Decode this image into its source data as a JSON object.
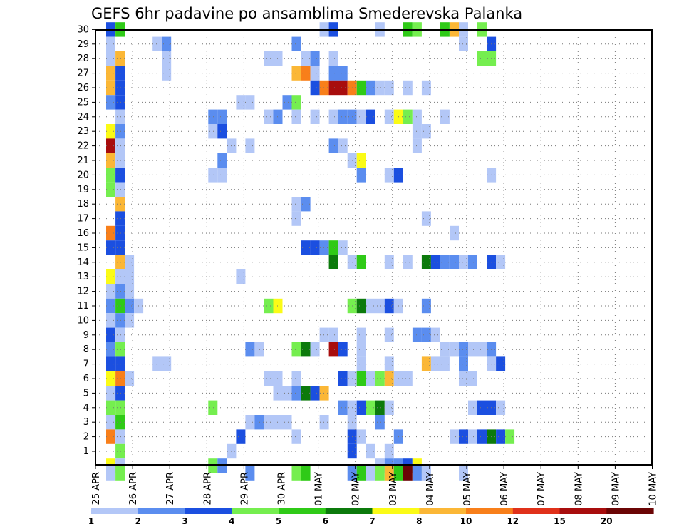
{
  "chart_data": {
    "type": "heatmap",
    "title": "GEFS 6hr padavine po ansamblima Smederevska Palanka",
    "xlabel": "",
    "ylabel": "",
    "y_range": [
      0,
      30
    ],
    "y_ticks": [
      1,
      2,
      3,
      4,
      5,
      6,
      7,
      8,
      9,
      10,
      11,
      12,
      13,
      14,
      15,
      16,
      17,
      18,
      19,
      20,
      21,
      22,
      23,
      24,
      25,
      26,
      27,
      28,
      29,
      30
    ],
    "x_ticks": [
      "25 APR",
      "26 APR",
      "27 APR",
      "28 APR",
      "29 APR",
      "30 APR",
      "01 MAY",
      "02 MAY",
      "03 MAY",
      "04 MAY",
      "05 MAY",
      "06 MAY",
      "07 MAY",
      "08 MAY",
      "09 MAY",
      "10 MAY"
    ],
    "time_steps_per_day": 4,
    "grid": true,
    "colorbar": {
      "position": "bottom",
      "labels": [
        "1",
        "2",
        "3",
        "4",
        "5",
        "6",
        "7",
        "8",
        "10",
        "12",
        "15",
        "20"
      ],
      "colors": [
        "#b3c7f7",
        "#5b8def",
        "#1b4fe0",
        "#75ee4f",
        "#2fca17",
        "#0c7a0c",
        "#fbfb16",
        "#fbb736",
        "#f87f1a",
        "#e0311a",
        "#a80d0d",
        "#6b0505"
      ]
    },
    "cells": [
      [
        0.5,
        30,
        "#1b4fe0"
      ],
      [
        1,
        30,
        "#2fca17"
      ],
      [
        12,
        30,
        "#b3c7f7"
      ],
      [
        12.5,
        30,
        "#1b4fe0"
      ],
      [
        15,
        30,
        "#b3c7f7"
      ],
      [
        16.5,
        30,
        "#2fca17"
      ],
      [
        17,
        30,
        "#75ee4f"
      ],
      [
        18.5,
        30,
        "#2fca17"
      ],
      [
        19,
        30,
        "#fbb736"
      ],
      [
        19.5,
        30,
        "#b3c7f7"
      ],
      [
        20.5,
        30,
        "#75ee4f"
      ],
      [
        0.5,
        29,
        "#b3c7f7"
      ],
      [
        3,
        29,
        "#b3c7f7"
      ],
      [
        3.5,
        29,
        "#5b8def"
      ],
      [
        10.5,
        29,
        "#5b8def"
      ],
      [
        19.5,
        29,
        "#b3c7f7"
      ],
      [
        21,
        29,
        "#1b4fe0"
      ],
      [
        0.5,
        28,
        "#b3c7f7"
      ],
      [
        1,
        28,
        "#fbb736"
      ],
      [
        3.5,
        28,
        "#b3c7f7"
      ],
      [
        9,
        28,
        "#b3c7f7"
      ],
      [
        9.5,
        28,
        "#b3c7f7"
      ],
      [
        11,
        28,
        "#b3c7f7"
      ],
      [
        11.5,
        28,
        "#5b8def"
      ],
      [
        12.5,
        28,
        "#b3c7f7"
      ],
      [
        20.5,
        28,
        "#75ee4f"
      ],
      [
        21,
        28,
        "#75ee4f"
      ],
      [
        0.5,
        27,
        "#fbb736"
      ],
      [
        1,
        27,
        "#1b4fe0"
      ],
      [
        3.5,
        27,
        "#b3c7f7"
      ],
      [
        10.5,
        27,
        "#fbb736"
      ],
      [
        11,
        27,
        "#f87f1a"
      ],
      [
        11.5,
        27,
        "#b3c7f7"
      ],
      [
        12.5,
        27,
        "#5b8def"
      ],
      [
        13,
        27,
        "#5b8def"
      ],
      [
        0.5,
        26,
        "#fbb736"
      ],
      [
        1,
        26,
        "#1b4fe0"
      ],
      [
        11.5,
        26,
        "#1b4fe0"
      ],
      [
        12,
        26,
        "#f87f1a"
      ],
      [
        12.5,
        26,
        "#a80d0d"
      ],
      [
        13,
        26,
        "#a80d0d"
      ],
      [
        13.5,
        26,
        "#f87f1a"
      ],
      [
        14,
        26,
        "#2fca17"
      ],
      [
        14.5,
        26,
        "#5b8def"
      ],
      [
        15,
        26,
        "#b3c7f7"
      ],
      [
        15.5,
        26,
        "#b3c7f7"
      ],
      [
        16.5,
        26,
        "#b3c7f7"
      ],
      [
        17.5,
        26,
        "#b3c7f7"
      ],
      [
        0.5,
        25,
        "#5b8def"
      ],
      [
        1,
        25,
        "#1b4fe0"
      ],
      [
        7.5,
        25,
        "#b3c7f7"
      ],
      [
        8,
        25,
        "#b3c7f7"
      ],
      [
        10,
        25,
        "#5b8def"
      ],
      [
        10.5,
        25,
        "#75ee4f"
      ],
      [
        1,
        24,
        "#b3c7f7"
      ],
      [
        6,
        24,
        "#5b8def"
      ],
      [
        6.5,
        24,
        "#5b8def"
      ],
      [
        9,
        24,
        "#b3c7f7"
      ],
      [
        9.5,
        24,
        "#5b8def"
      ],
      [
        10.5,
        24,
        "#b3c7f7"
      ],
      [
        11.5,
        24,
        "#b3c7f7"
      ],
      [
        12.5,
        24,
        "#b3c7f7"
      ],
      [
        13,
        24,
        "#5b8def"
      ],
      [
        13.5,
        24,
        "#5b8def"
      ],
      [
        14,
        24,
        "#b3c7f7"
      ],
      [
        14.5,
        24,
        "#1b4fe0"
      ],
      [
        15.5,
        24,
        "#b3c7f7"
      ],
      [
        16,
        24,
        "#fbfb16"
      ],
      [
        16.5,
        24,
        "#75ee4f"
      ],
      [
        17,
        24,
        "#b3c7f7"
      ],
      [
        18.5,
        24,
        "#b3c7f7"
      ],
      [
        0.5,
        23,
        "#fbfb16"
      ],
      [
        1,
        23,
        "#5b8def"
      ],
      [
        6,
        23,
        "#b3c7f7"
      ],
      [
        6.5,
        23,
        "#1b4fe0"
      ],
      [
        17,
        23,
        "#b3c7f7"
      ],
      [
        17.5,
        23,
        "#b3c7f7"
      ],
      [
        0.5,
        22,
        "#a80d0d"
      ],
      [
        1,
        22,
        "#b3c7f7"
      ],
      [
        7,
        22,
        "#b3c7f7"
      ],
      [
        8,
        22,
        "#b3c7f7"
      ],
      [
        12.5,
        22,
        "#5b8def"
      ],
      [
        13,
        22,
        "#b3c7f7"
      ],
      [
        17,
        22,
        "#b3c7f7"
      ],
      [
        0.5,
        21,
        "#fbb736"
      ],
      [
        1,
        21,
        "#b3c7f7"
      ],
      [
        6.5,
        21,
        "#5b8def"
      ],
      [
        13.5,
        21,
        "#b3c7f7"
      ],
      [
        14,
        21,
        "#fbfb16"
      ],
      [
        0.5,
        20,
        "#75ee4f"
      ],
      [
        1,
        20,
        "#1b4fe0"
      ],
      [
        6,
        20,
        "#b3c7f7"
      ],
      [
        6.5,
        20,
        "#b3c7f7"
      ],
      [
        14,
        20,
        "#5b8def"
      ],
      [
        15.5,
        20,
        "#b3c7f7"
      ],
      [
        16,
        20,
        "#1b4fe0"
      ],
      [
        21,
        20,
        "#b3c7f7"
      ],
      [
        0.5,
        19,
        "#75ee4f"
      ],
      [
        1,
        19,
        "#b3c7f7"
      ],
      [
        1,
        18,
        "#fbb736"
      ],
      [
        10.5,
        18,
        "#b3c7f7"
      ],
      [
        11,
        18,
        "#5b8def"
      ],
      [
        1,
        17,
        "#1b4fe0"
      ],
      [
        10.5,
        17,
        "#b3c7f7"
      ],
      [
        17.5,
        17,
        "#b3c7f7"
      ],
      [
        0.5,
        16,
        "#f87f1a"
      ],
      [
        1,
        16,
        "#1b4fe0"
      ],
      [
        19,
        16,
        "#b3c7f7"
      ],
      [
        0.5,
        15,
        "#1b4fe0"
      ],
      [
        1,
        15,
        "#1b4fe0"
      ],
      [
        11,
        15,
        "#1b4fe0"
      ],
      [
        11.5,
        15,
        "#1b4fe0"
      ],
      [
        12,
        15,
        "#5b8def"
      ],
      [
        12.5,
        15,
        "#2fca17"
      ],
      [
        13,
        15,
        "#b3c7f7"
      ],
      [
        1,
        14,
        "#fbb736"
      ],
      [
        1.5,
        14,
        "#b3c7f7"
      ],
      [
        12.5,
        14,
        "#0c7a0c"
      ],
      [
        13.5,
        14,
        "#b3c7f7"
      ],
      [
        14,
        14,
        "#2fca17"
      ],
      [
        15.5,
        14,
        "#b3c7f7"
      ],
      [
        16.5,
        14,
        "#b3c7f7"
      ],
      [
        17.5,
        14,
        "#0c7a0c"
      ],
      [
        18,
        14,
        "#1b4fe0"
      ],
      [
        18.5,
        14,
        "#5b8def"
      ],
      [
        19,
        14,
        "#5b8def"
      ],
      [
        19.5,
        14,
        "#b3c7f7"
      ],
      [
        20,
        14,
        "#5b8def"
      ],
      [
        21,
        14,
        "#1b4fe0"
      ],
      [
        21.5,
        14,
        "#b3c7f7"
      ],
      [
        0.5,
        13,
        "#fbfb16"
      ],
      [
        1,
        13,
        "#b3c7f7"
      ],
      [
        1.5,
        13,
        "#b3c7f7"
      ],
      [
        7.5,
        13,
        "#b3c7f7"
      ],
      [
        0.5,
        12,
        "#b3c7f7"
      ],
      [
        1,
        12,
        "#5b8def"
      ],
      [
        1.5,
        12,
        "#b3c7f7"
      ],
      [
        0.5,
        11,
        "#5b8def"
      ],
      [
        1,
        11,
        "#2fca17"
      ],
      [
        1.5,
        11,
        "#5b8def"
      ],
      [
        2,
        11,
        "#b3c7f7"
      ],
      [
        9,
        11,
        "#75ee4f"
      ],
      [
        9.5,
        11,
        "#fbfb16"
      ],
      [
        13.5,
        11,
        "#75ee4f"
      ],
      [
        14,
        11,
        "#0c7a0c"
      ],
      [
        14.5,
        11,
        "#b3c7f7"
      ],
      [
        15,
        11,
        "#b3c7f7"
      ],
      [
        15.5,
        11,
        "#1b4fe0"
      ],
      [
        16,
        11,
        "#b3c7f7"
      ],
      [
        17.5,
        11,
        "#5b8def"
      ],
      [
        0.5,
        10,
        "#b3c7f7"
      ],
      [
        1,
        10,
        "#5b8def"
      ],
      [
        1.5,
        10,
        "#b3c7f7"
      ],
      [
        0.5,
        9,
        "#1b4fe0"
      ],
      [
        1,
        9,
        "#b3c7f7"
      ],
      [
        12,
        9,
        "#b3c7f7"
      ],
      [
        12.5,
        9,
        "#b3c7f7"
      ],
      [
        14,
        9,
        "#b3c7f7"
      ],
      [
        15.5,
        9,
        "#b3c7f7"
      ],
      [
        17,
        9,
        "#5b8def"
      ],
      [
        17.5,
        9,
        "#5b8def"
      ],
      [
        18,
        9,
        "#b3c7f7"
      ],
      [
        0.5,
        8,
        "#5b8def"
      ],
      [
        1,
        8,
        "#75ee4f"
      ],
      [
        8,
        8,
        "#5b8def"
      ],
      [
        8.5,
        8,
        "#b3c7f7"
      ],
      [
        10.5,
        8,
        "#75ee4f"
      ],
      [
        11,
        8,
        "#0c7a0c"
      ],
      [
        11.5,
        8,
        "#b3c7f7"
      ],
      [
        12.5,
        8,
        "#a80d0d"
      ],
      [
        13,
        8,
        "#1b4fe0"
      ],
      [
        14,
        8,
        "#b3c7f7"
      ],
      [
        18.5,
        8,
        "#b3c7f7"
      ],
      [
        19,
        8,
        "#b3c7f7"
      ],
      [
        19.5,
        8,
        "#5b8def"
      ],
      [
        20,
        8,
        "#b3c7f7"
      ],
      [
        20.5,
        8,
        "#b3c7f7"
      ],
      [
        21,
        8,
        "#5b8def"
      ],
      [
        0.5,
        7,
        "#1b4fe0"
      ],
      [
        1,
        7,
        "#1b4fe0"
      ],
      [
        3,
        7,
        "#b3c7f7"
      ],
      [
        3.5,
        7,
        "#b3c7f7"
      ],
      [
        14,
        7,
        "#b3c7f7"
      ],
      [
        15.5,
        7,
        "#b3c7f7"
      ],
      [
        17.5,
        7,
        "#fbb736"
      ],
      [
        18,
        7,
        "#b3c7f7"
      ],
      [
        18.5,
        7,
        "#b3c7f7"
      ],
      [
        19.5,
        7,
        "#5b8def"
      ],
      [
        21,
        7,
        "#b3c7f7"
      ],
      [
        21.5,
        7,
        "#1b4fe0"
      ],
      [
        0.5,
        6,
        "#fbfb16"
      ],
      [
        1,
        6,
        "#f87f1a"
      ],
      [
        1.5,
        6,
        "#b3c7f7"
      ],
      [
        9,
        6,
        "#b3c7f7"
      ],
      [
        9.5,
        6,
        "#b3c7f7"
      ],
      [
        10.5,
        6,
        "#b3c7f7"
      ],
      [
        13,
        6,
        "#1b4fe0"
      ],
      [
        13.5,
        6,
        "#b3c7f7"
      ],
      [
        14,
        6,
        "#2fca17"
      ],
      [
        14.5,
        6,
        "#b3c7f7"
      ],
      [
        15,
        6,
        "#75ee4f"
      ],
      [
        15.5,
        6,
        "#fbb736"
      ],
      [
        16,
        6,
        "#b3c7f7"
      ],
      [
        16.5,
        6,
        "#b3c7f7"
      ],
      [
        19.5,
        6,
        "#b3c7f7"
      ],
      [
        20,
        6,
        "#b3c7f7"
      ],
      [
        0.5,
        5,
        "#b3c7f7"
      ],
      [
        1,
        5,
        "#1b4fe0"
      ],
      [
        9.5,
        5,
        "#b3c7f7"
      ],
      [
        10,
        5,
        "#b3c7f7"
      ],
      [
        10.5,
        5,
        "#5b8def"
      ],
      [
        11,
        5,
        "#0c7a0c"
      ],
      [
        11.5,
        5,
        "#1b4fe0"
      ],
      [
        12,
        5,
        "#fbb736"
      ],
      [
        0.5,
        4,
        "#75ee4f"
      ],
      [
        1,
        4,
        "#75ee4f"
      ],
      [
        6,
        4,
        "#75ee4f"
      ],
      [
        13,
        4,
        "#5b8def"
      ],
      [
        13.5,
        4,
        "#b3c7f7"
      ],
      [
        14,
        4,
        "#1b4fe0"
      ],
      [
        14.5,
        4,
        "#75ee4f"
      ],
      [
        15,
        4,
        "#0c7a0c"
      ],
      [
        15.5,
        4,
        "#b3c7f7"
      ],
      [
        20,
        4,
        "#b3c7f7"
      ],
      [
        20.5,
        4,
        "#1b4fe0"
      ],
      [
        21,
        4,
        "#1b4fe0"
      ],
      [
        21.5,
        4,
        "#b3c7f7"
      ],
      [
        0.5,
        3,
        "#b3c7f7"
      ],
      [
        1,
        3,
        "#2fca17"
      ],
      [
        8,
        3,
        "#b3c7f7"
      ],
      [
        8.5,
        3,
        "#5b8def"
      ],
      [
        9,
        3,
        "#b3c7f7"
      ],
      [
        9.5,
        3,
        "#b3c7f7"
      ],
      [
        10,
        3,
        "#b3c7f7"
      ],
      [
        12,
        3,
        "#b3c7f7"
      ],
      [
        13.5,
        3,
        "#b3c7f7"
      ],
      [
        15,
        3,
        "#5b8def"
      ],
      [
        0.5,
        2,
        "#f87f1a"
      ],
      [
        1,
        2,
        "#b3c7f7"
      ],
      [
        7.5,
        2,
        "#1b4fe0"
      ],
      [
        10.5,
        2,
        "#b3c7f7"
      ],
      [
        13.5,
        2,
        "#1b4fe0"
      ],
      [
        14,
        2,
        "#b3c7f7"
      ],
      [
        16,
        2,
        "#5b8def"
      ],
      [
        19,
        2,
        "#b3c7f7"
      ],
      [
        19.5,
        2,
        "#1b4fe0"
      ],
      [
        20,
        2,
        "#b3c7f7"
      ],
      [
        20.5,
        2,
        "#1b4fe0"
      ],
      [
        21,
        2,
        "#0c7a0c"
      ],
      [
        21.5,
        2,
        "#1b4fe0"
      ],
      [
        22,
        2,
        "#75ee4f"
      ],
      [
        1,
        1,
        "#75ee4f"
      ],
      [
        7,
        1,
        "#b3c7f7"
      ],
      [
        13.5,
        1,
        "#1b4fe0"
      ],
      [
        14.5,
        1,
        "#b3c7f7"
      ],
      [
        15.5,
        1,
        "#b3c7f7"
      ],
      [
        0.5,
        0,
        "#fbfb16"
      ],
      [
        1,
        0,
        "#b3c7f7"
      ],
      [
        6,
        0,
        "#75ee4f"
      ],
      [
        6.5,
        0,
        "#5b8def"
      ],
      [
        15,
        0,
        "#b3c7f7"
      ],
      [
        15.5,
        0,
        "#5b8def"
      ],
      [
        16,
        0,
        "#5b8def"
      ],
      [
        16.5,
        0,
        "#1b4fe0"
      ],
      [
        17,
        0,
        "#fbfb16"
      ],
      [
        0.5,
        -0.5,
        "#b3c7f7"
      ],
      [
        1,
        -0.5,
        "#75ee4f"
      ],
      [
        8,
        -0.5,
        "#5b8def"
      ],
      [
        10.5,
        -0.5,
        "#75ee4f"
      ],
      [
        11,
        -0.5,
        "#2fca17"
      ],
      [
        13.5,
        -0.5,
        "#5b8def"
      ],
      [
        14,
        -0.5,
        "#2fca17"
      ],
      [
        14.5,
        -0.5,
        "#b3c7f7"
      ],
      [
        15,
        -0.5,
        "#75ee4f"
      ],
      [
        15.5,
        -0.5,
        "#fbb736"
      ],
      [
        16,
        -0.5,
        "#2fca17"
      ],
      [
        16.5,
        -0.5,
        "#6b0505"
      ],
      [
        17,
        -0.5,
        "#5b8def"
      ],
      [
        17.5,
        -0.5,
        "#b3c7f7"
      ],
      [
        19.5,
        -0.5,
        "#b3c7f7"
      ]
    ]
  }
}
